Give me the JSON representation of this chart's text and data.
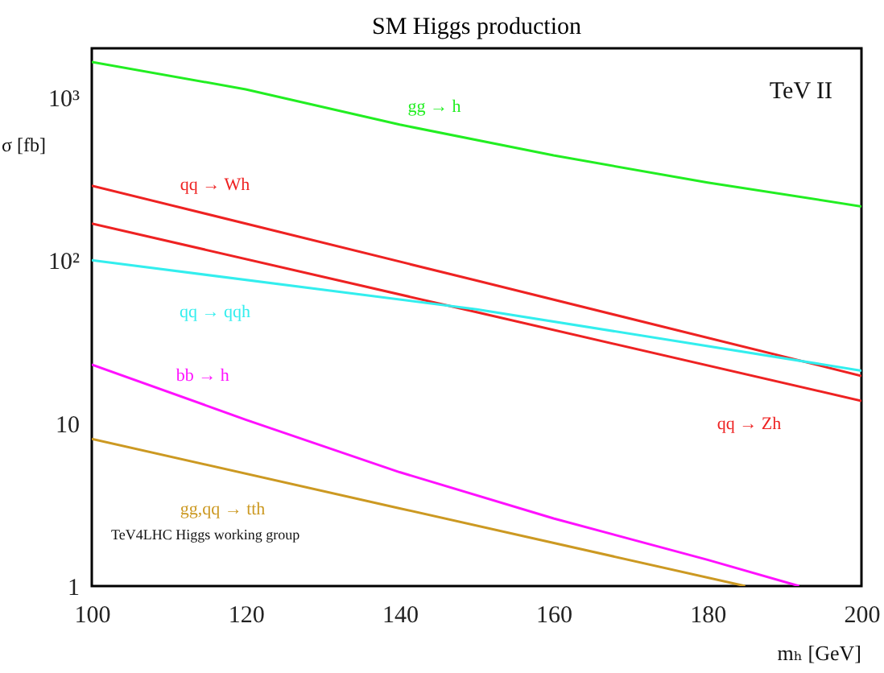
{
  "chart_data": {
    "type": "line",
    "title": "SM Higgs production",
    "xlabel": "mₕ [GeV]",
    "ylabel": "σ [fb]",
    "xlim": [
      100,
      200
    ],
    "xticks": [
      100,
      120,
      140,
      160,
      180,
      200
    ],
    "ylim": [
      1,
      2000
    ],
    "yticks": [
      1,
      10,
      {
        "value": 100,
        "label": "10²"
      },
      {
        "value": 1000,
        "label": "10³"
      }
    ],
    "log": "y",
    "grid": false,
    "marker": "none",
    "line_style": "solid",
    "annotations": [
      "TeV II",
      "TeV4LHC Higgs working group"
    ],
    "series": [
      {
        "name": "gg → h",
        "color": "#22ee22",
        "x": [
          100,
          120,
          140,
          160,
          180,
          200
        ],
        "values": [
          1650,
          1120,
          680,
          440,
          300,
          214
        ]
      },
      {
        "name": "qq → Wh",
        "color": "#ee2222",
        "x": [
          100,
          150,
          200
        ],
        "values": [
          287,
          75,
          19.5
        ]
      },
      {
        "name": "qq → Zh",
        "color": "#ee2222",
        "x": [
          100,
          150,
          200
        ],
        "values": [
          168,
          48,
          13.7
        ]
      },
      {
        "name": "qq → qqh",
        "color": "#33eeee",
        "x": [
          100,
          150,
          200
        ],
        "values": [
          100,
          50,
          21
        ]
      },
      {
        "name": "bb → h",
        "color": "#ff11ff",
        "x": [
          100,
          120,
          140,
          160,
          180,
          191.9
        ],
        "values": [
          22.9,
          10.5,
          5.0,
          2.6,
          1.45,
          1
        ]
      },
      {
        "name": "gg,qq → tth",
        "color": "#cc9922",
        "x": [
          100,
          140,
          184.9
        ],
        "values": [
          8,
          3.0,
          1
        ]
      }
    ]
  }
}
